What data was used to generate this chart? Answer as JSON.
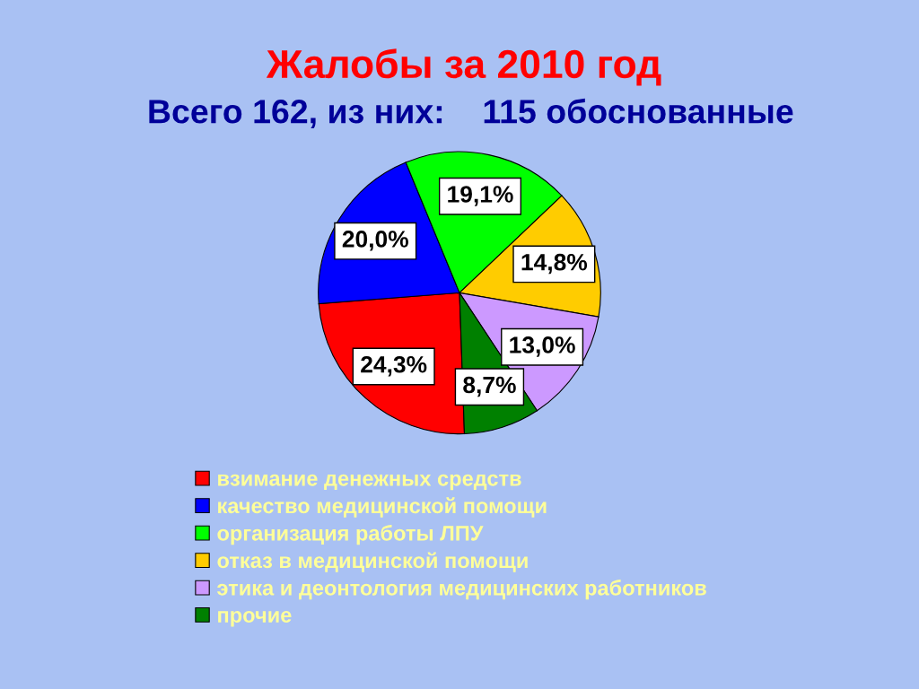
{
  "chart_data": {
    "type": "pie",
    "title": "Жалобы за 2010 год",
    "subtitle": "Всего 162, из них:    115 обоснованные",
    "categories": [
      "взимание денежных средств",
      "качество медицинской помощи",
      "организация работы ЛПУ",
      "отказ в медицинской помощи",
      "этика и деонтология медицинских работников",
      "прочие"
    ],
    "values": [
      24.3,
      20.0,
      19.1,
      14.8,
      13.0,
      8.7
    ],
    "colors": [
      "#ff0000",
      "#0000ff",
      "#00ff00",
      "#ffcc00",
      "#cc99ff",
      "#008000"
    ],
    "value_labels": [
      "24,3%",
      "20,0%",
      "19,1%",
      "14,8%",
      "13,0%",
      "8,7%"
    ],
    "legend": "bottom"
  }
}
